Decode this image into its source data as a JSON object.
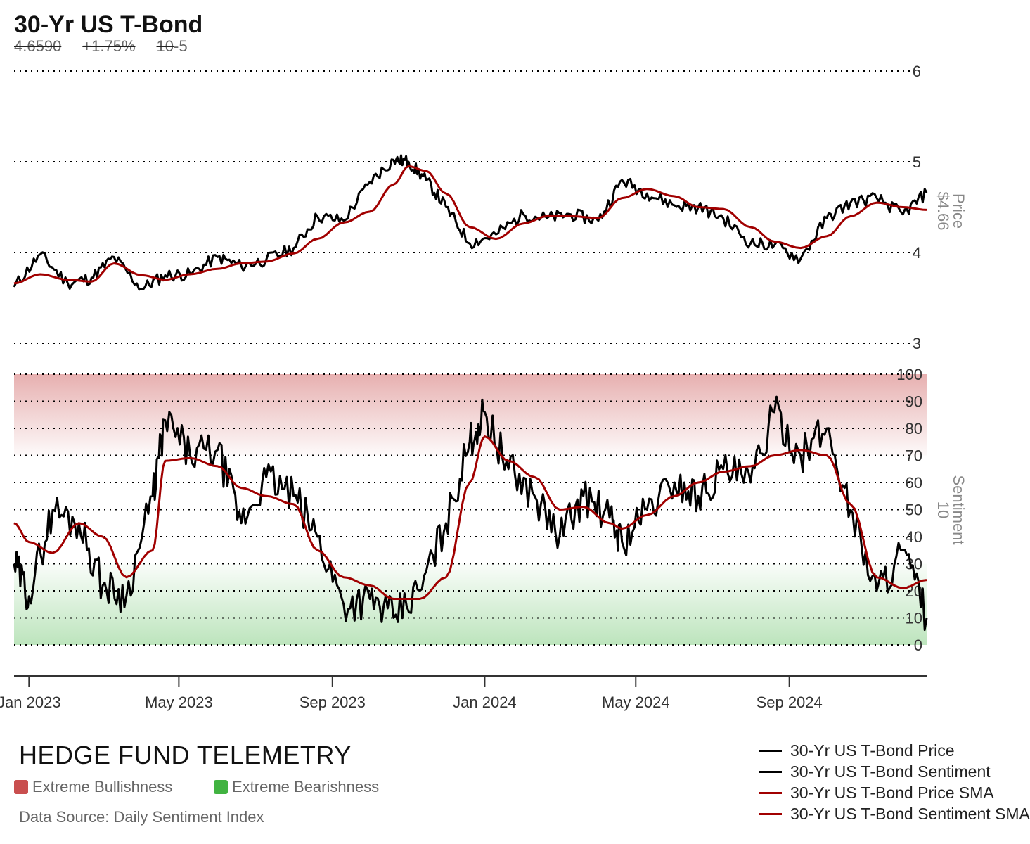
{
  "header": {
    "title": "30-Yr US T-Bond",
    "sub_price": "4.6590",
    "sub_change": "+1.75%",
    "sub_sentiment": "10",
    "sub_sentiment_change": "-5"
  },
  "colors": {
    "raw_line": "#000000",
    "sma_line": "#a10000",
    "bull_zone": "#c94f4f",
    "bear_zone": "#41b341",
    "grid": "#000000"
  },
  "footer": {
    "brand": "HEDGE FUND TELEMETRY",
    "bull_label": "Extreme Bullishness",
    "bear_label": "Extreme Bearishness",
    "source": "Data Source: Daily Sentiment Index",
    "legend": [
      {
        "label": "30-Yr US T-Bond Price",
        "color": "#000000"
      },
      {
        "label": "30-Yr US T-Bond Sentiment",
        "color": "#000000"
      },
      {
        "label": "30-Yr US T-Bond Price SMA",
        "color": "#a10000"
      },
      {
        "label": "30-Yr US T-Bond Sentiment SMA",
        "color": "#a10000"
      }
    ]
  },
  "chart_data": [
    {
      "type": "line",
      "panel": "price",
      "ylabel": "Price",
      "ylabel_value": "$4.66",
      "ylim": [
        3,
        6
      ],
      "yticks": [
        3,
        4,
        5,
        6
      ],
      "grid": true,
      "x": [
        "2022-12-20",
        "2023-01-10",
        "2023-02-01",
        "2023-02-20",
        "2023-03-10",
        "2023-04-01",
        "2023-04-20",
        "2023-05-10",
        "2023-06-01",
        "2023-06-20",
        "2023-07-10",
        "2023-08-01",
        "2023-08-20",
        "2023-09-10",
        "2023-10-01",
        "2023-10-20",
        "2023-11-01",
        "2023-11-15",
        "2023-12-01",
        "2023-12-20",
        "2024-01-10",
        "2024-02-01",
        "2024-02-20",
        "2024-03-10",
        "2024-04-01",
        "2024-04-20",
        "2024-05-10",
        "2024-06-01",
        "2024-06-20",
        "2024-07-10",
        "2024-08-01",
        "2024-08-20",
        "2024-09-10",
        "2024-10-01",
        "2024-10-20",
        "2024-11-10",
        "2024-12-01",
        "2024-12-20"
      ],
      "series": [
        {
          "name": "30-Yr US T-Bond Price",
          "values": [
            3.62,
            3.98,
            3.66,
            3.72,
            3.95,
            3.6,
            3.75,
            3.76,
            3.95,
            3.85,
            3.92,
            4.05,
            4.4,
            4.35,
            4.78,
            5.02,
            5.0,
            4.8,
            4.5,
            4.1,
            4.2,
            4.42,
            4.38,
            4.42,
            4.35,
            4.8,
            4.65,
            4.52,
            4.5,
            4.38,
            4.1,
            4.08,
            3.93,
            4.38,
            4.55,
            4.6,
            4.42,
            4.66
          ]
        },
        {
          "name": "30-Yr US T-Bond Price SMA",
          "values": [
            3.66,
            3.76,
            3.7,
            3.68,
            3.88,
            3.75,
            3.7,
            3.76,
            3.82,
            3.88,
            3.9,
            3.99,
            4.15,
            4.33,
            4.45,
            4.75,
            4.95,
            4.9,
            4.65,
            4.28,
            4.15,
            4.32,
            4.4,
            4.4,
            4.38,
            4.6,
            4.7,
            4.62,
            4.5,
            4.48,
            4.28,
            4.12,
            4.05,
            4.18,
            4.4,
            4.55,
            4.5,
            4.47
          ]
        }
      ]
    },
    {
      "type": "line",
      "panel": "sentiment",
      "ylabel": "Sentiment",
      "ylabel_value": "10",
      "ylim": [
        0,
        100
      ],
      "yticks": [
        0,
        10,
        20,
        30,
        40,
        50,
        60,
        70,
        80,
        90,
        100
      ],
      "zones": [
        {
          "name": "Extreme Bullishness",
          "from": 70,
          "to": 100
        },
        {
          "name": "Extreme Bearishness",
          "from": 0,
          "to": 30
        }
      ],
      "grid": true,
      "x": [
        "2022-12-20",
        "2023-01-01",
        "2023-01-20",
        "2023-02-10",
        "2023-03-01",
        "2023-03-20",
        "2023-04-10",
        "2023-04-20",
        "2023-05-10",
        "2023-06-01",
        "2023-06-20",
        "2023-07-10",
        "2023-08-01",
        "2023-08-20",
        "2023-09-10",
        "2023-10-01",
        "2023-10-20",
        "2023-11-10",
        "2023-12-01",
        "2023-12-20",
        "2024-01-01",
        "2024-01-20",
        "2024-02-10",
        "2024-03-01",
        "2024-03-20",
        "2024-04-10",
        "2024-04-20",
        "2024-05-10",
        "2024-06-01",
        "2024-06-20",
        "2024-07-10",
        "2024-08-01",
        "2024-08-20",
        "2024-09-10",
        "2024-10-01",
        "2024-10-20",
        "2024-11-10",
        "2024-12-01",
        "2024-12-20"
      ],
      "series": [
        {
          "name": "30-Yr US T-Bond Sentiment",
          "values": [
            30,
            18,
            50,
            45,
            22,
            18,
            55,
            83,
            70,
            72,
            45,
            62,
            55,
            40,
            15,
            17,
            10,
            20,
            45,
            75,
            86,
            65,
            55,
            40,
            55,
            47,
            38,
            50,
            60,
            55,
            65,
            60,
            86,
            70,
            80,
            50,
            20,
            35,
            10
          ]
        },
        {
          "name": "30-Yr US T-Bond Sentiment SMA",
          "values": [
            45,
            38,
            34,
            45,
            40,
            25,
            35,
            68,
            69,
            66,
            58,
            55,
            52,
            35,
            25,
            22,
            17,
            17,
            25,
            60,
            77,
            68,
            62,
            50,
            51,
            45,
            43,
            48,
            55,
            60,
            64,
            66,
            70,
            72,
            70,
            52,
            25,
            21,
            24
          ]
        }
      ]
    }
  ],
  "x_axis": {
    "labels": [
      "Jan 2023",
      "May 2023",
      "Sep 2023",
      "Jan 2024",
      "May 2024",
      "Sep 2024"
    ],
    "dates": [
      "2023-01-01",
      "2023-05-01",
      "2023-09-01",
      "2024-01-01",
      "2024-05-01",
      "2024-09-01"
    ]
  }
}
